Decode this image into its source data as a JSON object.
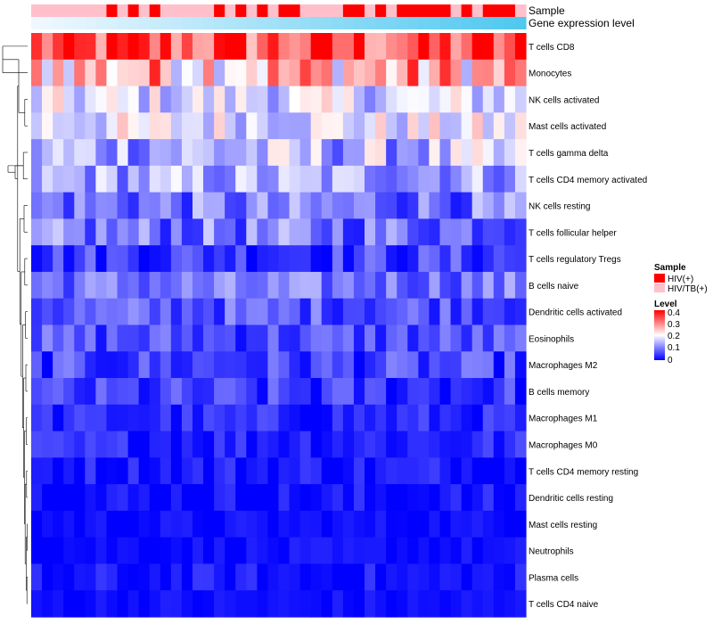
{
  "chart_data": {
    "type": "heatmap",
    "annotation_tracks": [
      "Sample",
      "Gene expression level"
    ],
    "rows": [
      "T cells CD8",
      "Monocytes",
      "NK cells activated",
      "Mast cells activated",
      "T cells gamma delta",
      "T cells CD4 memory activated",
      "NK cells resting",
      "T cells follicular helper",
      "T cells regulatory  Tregs",
      "B cells naive",
      "Dendritic cells activated",
      "Eosinophils",
      "Macrophages M2",
      "B cells memory",
      "Macrophages M1",
      "Macrophages M0",
      "T cells CD4 memory resting",
      "Dendritic cells resting",
      "Mast cells resting",
      "Neutrophils",
      "Plasma cells",
      "T cells CD4 naive"
    ],
    "n_columns": 46,
    "sample_groups": [
      1,
      1,
      1,
      1,
      1,
      1,
      1,
      0,
      1,
      0,
      1,
      0,
      1,
      1,
      1,
      1,
      1,
      0,
      1,
      0,
      1,
      0,
      1,
      0,
      0,
      1,
      1,
      1,
      1,
      0,
      0,
      1,
      0,
      1,
      0,
      0,
      0,
      0,
      0,
      1,
      0,
      1,
      0,
      0,
      0,
      1
    ],
    "sample_legend": {
      "title": "Sample",
      "labels": [
        "HIV(+)",
        "HIV/TB(+)"
      ],
      "colors": [
        "#ff0000",
        "#ffc0cb"
      ]
    },
    "level_legend": {
      "title": "Level",
      "ticks": [
        "0.4",
        "0.3",
        "0.2",
        "0.1",
        "0"
      ],
      "range": [
        0,
        0.4
      ],
      "colors": [
        "#0000ff",
        "#ffffff",
        "#ff0000"
      ]
    },
    "row_means": [
      0.33,
      0.26,
      0.17,
      0.18,
      0.14,
      0.13,
      0.09,
      0.09,
      0.05,
      0.09,
      0.07,
      0.06,
      0.05,
      0.04,
      0.03,
      0.03,
      0.02,
      0.01,
      0.01,
      0.01,
      0.01,
      0.01
    ],
    "row_spread": [
      0.06,
      0.07,
      0.04,
      0.04,
      0.05,
      0.04,
      0.04,
      0.04,
      0.03,
      0.03,
      0.03,
      0.03,
      0.03,
      0.03,
      0.02,
      0.02,
      0.02,
      0.02,
      0.01,
      0.01,
      0.02,
      0.01
    ],
    "dendrogram_merges": [
      [
        0,
        1,
        0.7
      ],
      [
        2,
        3,
        0.08
      ],
      [
        4,
        5,
        0.12
      ],
      [
        22,
        23,
        0.25
      ],
      [
        6,
        7,
        0.1
      ],
      [
        8,
        9,
        0.08
      ],
      [
        10,
        11,
        0.06
      ],
      [
        12,
        13,
        0.05
      ],
      [
        14,
        15,
        0.04
      ],
      [
        16,
        17,
        0.03
      ],
      [
        18,
        19,
        0.01
      ],
      [
        20,
        21,
        0.02
      ],
      [
        32,
        33,
        0.04
      ],
      [
        31,
        34,
        0.07
      ],
      [
        30,
        35,
        0.09
      ],
      [
        29,
        36,
        0.11
      ],
      [
        28,
        37,
        0.14
      ],
      [
        27,
        38,
        0.18
      ],
      [
        26,
        39,
        0.22
      ],
      [
        25,
        40,
        0.28
      ],
      [
        24,
        41,
        0.35
      ],
      [
        42,
        43,
        0.48
      ],
      [
        24,
        42,
        0.55
      ]
    ]
  }
}
